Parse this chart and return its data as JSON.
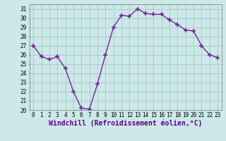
{
  "x": [
    0,
    1,
    2,
    3,
    4,
    5,
    6,
    7,
    8,
    9,
    10,
    11,
    12,
    13,
    14,
    15,
    16,
    17,
    18,
    19,
    20,
    21,
    22,
    23
  ],
  "y": [
    27.0,
    25.8,
    25.5,
    25.8,
    24.5,
    22.0,
    20.2,
    20.1,
    22.8,
    26.0,
    29.0,
    30.3,
    30.2,
    31.0,
    30.5,
    30.4,
    30.4,
    29.8,
    29.3,
    28.7,
    28.6,
    27.0,
    26.0,
    25.7
  ],
  "line_color": "#7b1fa2",
  "marker": "+",
  "marker_color": "#7b1fa2",
  "bg_color": "#cce8e8",
  "grid_color": "#aacccc",
  "xlabel": "Windchill (Refroidissement éolien,°C)",
  "ylabel": "",
  "xlim": [
    -0.5,
    23.5
  ],
  "ylim": [
    20,
    31.5
  ],
  "yticks": [
    20,
    21,
    22,
    23,
    24,
    25,
    26,
    27,
    28,
    29,
    30,
    31
  ],
  "xticks": [
    0,
    1,
    2,
    3,
    4,
    5,
    6,
    7,
    8,
    9,
    10,
    11,
    12,
    13,
    14,
    15,
    16,
    17,
    18,
    19,
    20,
    21,
    22,
    23
  ],
  "tick_label_fontsize": 5.5,
  "xlabel_fontsize": 7.0,
  "line_width": 1.0,
  "marker_size": 5
}
